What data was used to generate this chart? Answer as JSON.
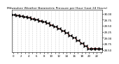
{
  "title": "Milwaukee Weather Barometric Pressure per Hour (Last 24 Hours)",
  "hours": [
    0,
    1,
    2,
    3,
    4,
    5,
    6,
    7,
    8,
    9,
    10,
    11,
    12,
    13,
    14,
    15,
    16,
    17,
    18,
    19,
    20,
    21,
    22,
    23
  ],
  "pressure": [
    29.95,
    29.93,
    29.9,
    29.87,
    29.84,
    29.8,
    29.76,
    29.71,
    29.66,
    29.6,
    29.53,
    29.46,
    29.38,
    29.29,
    29.2,
    29.1,
    29.0,
    28.89,
    28.78,
    28.67,
    28.56,
    28.56,
    28.56,
    28.56
  ],
  "line_color": "#dd0000",
  "marker_color": "#000000",
  "bg_color": "#ffffff",
  "grid_color": "#aaaaaa",
  "ylim_min": 28.4,
  "ylim_max": 30.15,
  "ytick_values": [
    28.5,
    28.75,
    29.0,
    29.25,
    29.5,
    29.75,
    30.0
  ],
  "title_fontsize": 3.2,
  "tick_fontsize": 2.8,
  "marker_size": 2.5,
  "line_width": 0.6
}
